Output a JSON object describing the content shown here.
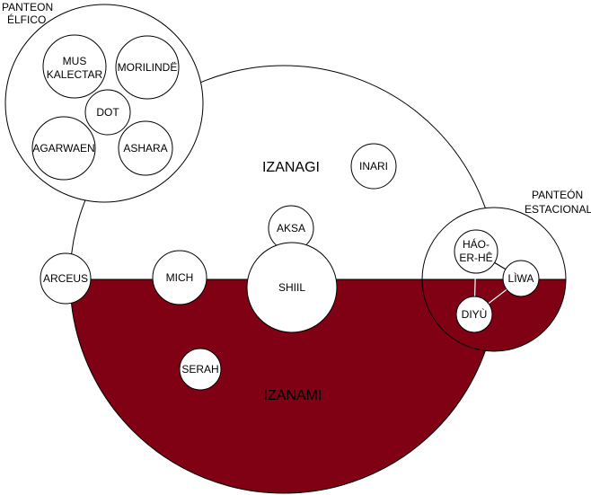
{
  "labels": {
    "panteon_elfico_line1": "PANTEON",
    "panteon_elfico_line2": "ÉLFICO",
    "panteon_estacional_line1": "PANTEÓN",
    "panteon_estacional_line2": "ESTACIONAL",
    "izanagi": "IZANAGI",
    "izanami": "IZANAMI",
    "inari": "INARI",
    "aksa": "AKSA",
    "shiil": "SHIIL",
    "mich": "MICH",
    "arceus": "ARCEUS",
    "serah": "SERAH",
    "mus_line1": "MUS",
    "mus_line2": "KALECTAR",
    "morilinde": "MORILINDË",
    "dot": "DOT",
    "agarwaen": "AGARWAEN",
    "ashara": "ASHARA",
    "haoerhe_line1": "HÁO-",
    "haoerhe_line2": "ER-HÊ",
    "liwa": "LÌWA",
    "diyu": "DIYÙ"
  },
  "colors": {
    "izanami_fill": "#800014",
    "node_fill": "#ffffff",
    "stroke": "#000000"
  }
}
